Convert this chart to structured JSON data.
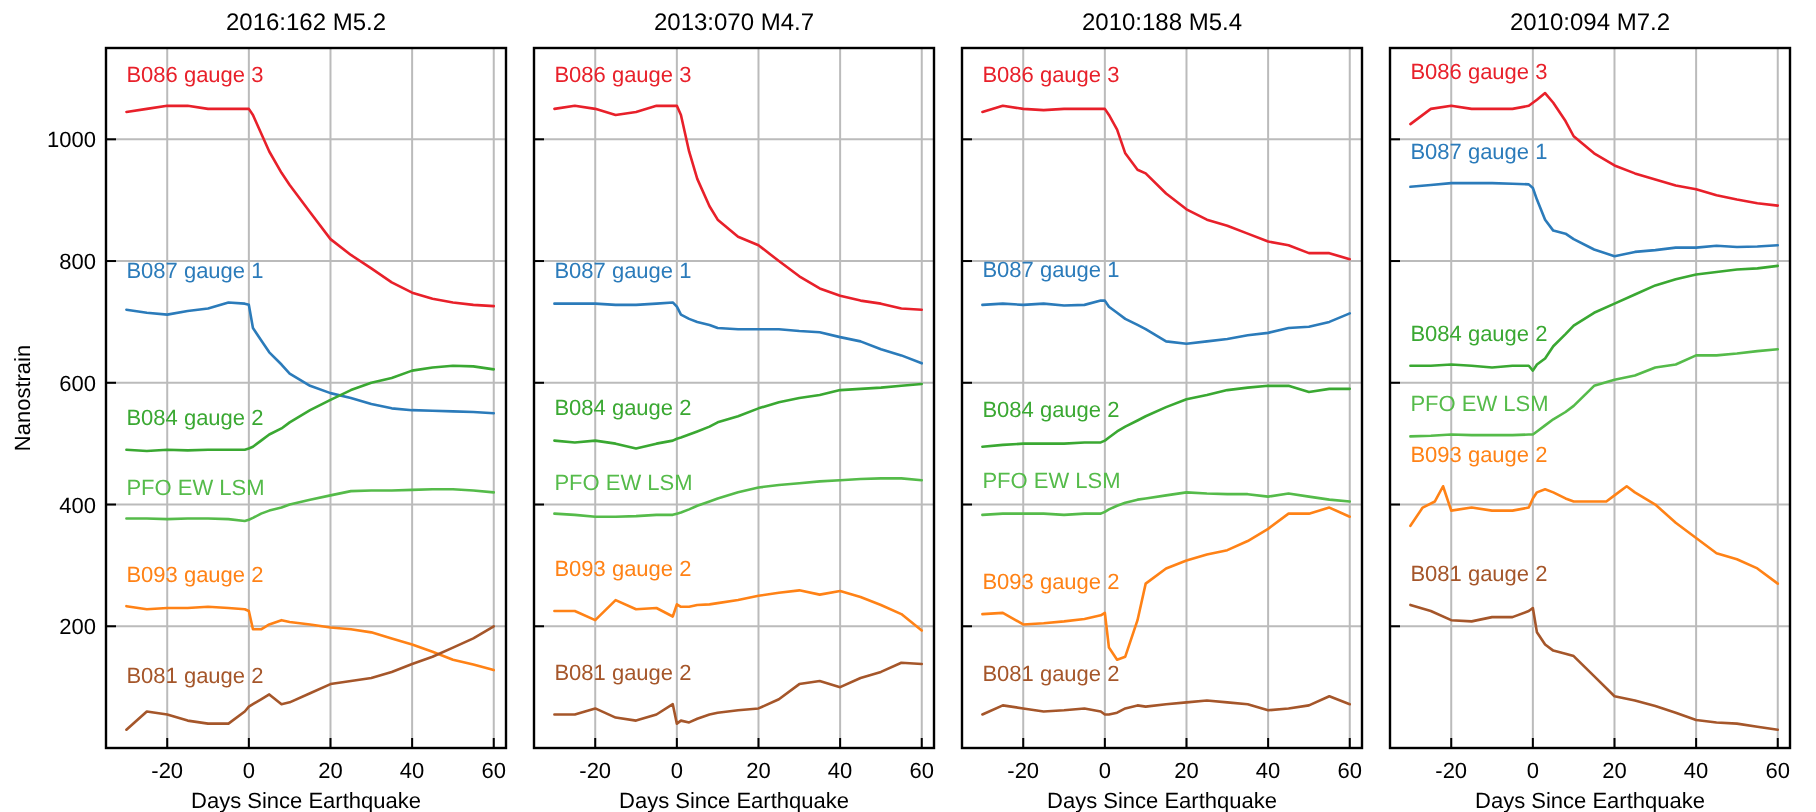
{
  "chart_data": [
    {
      "type": "line",
      "title": "2016:162  M5.2",
      "xlabel": "Days  Since  Earthquake",
      "ylabel": "Nanostrain",
      "xlim": [
        -35,
        63
      ],
      "ylim": [
        0,
        1150
      ],
      "xticks": [
        -20,
        0,
        20,
        40,
        60
      ],
      "yticks": [
        200,
        400,
        600,
        800,
        1000
      ],
      "grid": true,
      "x": [
        -30,
        -25,
        -20,
        -15,
        -10,
        -5,
        -1,
        0,
        1,
        3,
        5,
        8,
        10,
        15,
        20,
        25,
        30,
        35,
        40,
        45,
        50,
        55,
        60
      ],
      "series": [
        {
          "name": "B086  gauge  3",
          "color": "#e8202a",
          "values": [
            1045,
            1050,
            1055,
            1055,
            1050,
            1050,
            1050,
            1050,
            1040,
            1010,
            980,
            945,
            925,
            880,
            836,
            810,
            788,
            765,
            748,
            738,
            732,
            728,
            726
          ]
        },
        {
          "name": "B087  gauge  1",
          "color": "#2b7bba",
          "values": [
            720,
            715,
            712,
            718,
            722,
            732,
            730,
            728,
            690,
            670,
            650,
            630,
            615,
            595,
            583,
            575,
            565,
            558,
            555,
            554,
            553,
            552,
            550
          ]
        },
        {
          "name": "B084  gauge  2",
          "color": "#3aa832",
          "values": [
            490,
            488,
            490,
            489,
            490,
            490,
            490,
            492,
            495,
            505,
            515,
            525,
            535,
            555,
            572,
            588,
            600,
            608,
            620,
            625,
            628,
            627,
            622
          ]
        },
        {
          "name": "PFO  EW  LSM",
          "color": "#55bb4a",
          "values": [
            377,
            377,
            376,
            377,
            377,
            376,
            373,
            375,
            378,
            385,
            390,
            395,
            400,
            408,
            415,
            422,
            423,
            423,
            424,
            425,
            425,
            423,
            420
          ]
        },
        {
          "name": "B093  gauge  2",
          "color": "#ff8216",
          "values": [
            233,
            228,
            230,
            230,
            232,
            230,
            228,
            225,
            195,
            195,
            203,
            210,
            207,
            203,
            198,
            195,
            190,
            180,
            170,
            158,
            145,
            137,
            128
          ]
        },
        {
          "name": "B081  gauge  2",
          "color": "#a5562a",
          "values": [
            30,
            60,
            55,
            45,
            40,
            40,
            60,
            68,
            72,
            80,
            88,
            72,
            75,
            90,
            105,
            110,
            115,
            125,
            138,
            150,
            165,
            180,
            200
          ]
        }
      ]
    },
    {
      "type": "line",
      "title": "2013:070  M4.7",
      "xlabel": "Days  Since  Earthquake",
      "xlim": [
        -35,
        63
      ],
      "ylim": [
        0,
        1150
      ],
      "xticks": [
        -20,
        0,
        20,
        40,
        60
      ],
      "yticks": [
        200,
        400,
        600,
        800,
        1000
      ],
      "grid": true,
      "tick_labels": "x",
      "x": [
        -30,
        -25,
        -20,
        -15,
        -10,
        -5,
        -1,
        0,
        1,
        3,
        5,
        8,
        10,
        15,
        20,
        25,
        30,
        35,
        40,
        45,
        50,
        55,
        60
      ],
      "series": [
        {
          "name": "B086  gauge  3",
          "color": "#e8202a",
          "values": [
            1050,
            1055,
            1050,
            1040,
            1045,
            1055,
            1055,
            1055,
            1040,
            980,
            935,
            890,
            868,
            840,
            826,
            800,
            775,
            755,
            743,
            735,
            730,
            722,
            720
          ]
        },
        {
          "name": "B087  gauge  1",
          "color": "#2b7bba",
          "values": [
            730,
            730,
            730,
            728,
            728,
            730,
            732,
            725,
            712,
            705,
            700,
            695,
            690,
            688,
            688,
            688,
            685,
            683,
            675,
            668,
            655,
            645,
            632
          ]
        },
        {
          "name": "B084  gauge  2",
          "color": "#3aa832",
          "values": [
            505,
            502,
            505,
            500,
            492,
            500,
            505,
            508,
            510,
            515,
            520,
            528,
            535,
            545,
            558,
            568,
            575,
            580,
            588,
            590,
            592,
            595,
            598
          ]
        },
        {
          "name": "PFO  EW  LSM",
          "color": "#55bb4a",
          "values": [
            385,
            383,
            380,
            380,
            381,
            383,
            383,
            385,
            387,
            392,
            398,
            405,
            410,
            420,
            428,
            432,
            435,
            438,
            440,
            442,
            443,
            443,
            440
          ]
        },
        {
          "name": "B093  gauge  2",
          "color": "#ff8216",
          "values": [
            225,
            225,
            210,
            243,
            228,
            230,
            216,
            236,
            232,
            232,
            235,
            236,
            238,
            243,
            250,
            255,
            259,
            252,
            258,
            248,
            235,
            220,
            193
          ]
        },
        {
          "name": "B081  gauge  2",
          "color": "#a5562a",
          "values": [
            55,
            55,
            65,
            50,
            45,
            55,
            72,
            40,
            45,
            42,
            48,
            55,
            58,
            62,
            65,
            80,
            105,
            110,
            100,
            115,
            125,
            140,
            138
          ]
        }
      ]
    },
    {
      "type": "line",
      "title": "2010:188  M5.4",
      "xlabel": "Days  Since  Earthquake",
      "xlim": [
        -35,
        63
      ],
      "ylim": [
        0,
        1150
      ],
      "xticks": [
        -20,
        0,
        20,
        40,
        60
      ],
      "yticks": [
        200,
        400,
        600,
        800,
        1000
      ],
      "grid": true,
      "tick_labels": "x",
      "x": [
        -30,
        -25,
        -20,
        -15,
        -10,
        -5,
        -1,
        0,
        1,
        3,
        5,
        8,
        10,
        15,
        20,
        25,
        30,
        35,
        40,
        45,
        50,
        55,
        60
      ],
      "series": [
        {
          "name": "B086  gauge  3",
          "color": "#e8202a",
          "values": [
            1045,
            1055,
            1050,
            1048,
            1050,
            1050,
            1050,
            1050,
            1040,
            1016,
            977,
            950,
            944,
            911,
            885,
            868,
            858,
            845,
            832,
            826,
            813,
            813,
            803
          ]
        },
        {
          "name": "B087  gauge  1",
          "color": "#2b7bba",
          "values": [
            728,
            730,
            728,
            730,
            727,
            728,
            735,
            735,
            725,
            715,
            705,
            695,
            688,
            668,
            664,
            668,
            672,
            678,
            682,
            690,
            692,
            700,
            714
          ]
        },
        {
          "name": "B084  gauge  2",
          "color": "#3aa832",
          "values": [
            495,
            498,
            500,
            500,
            500,
            502,
            502,
            505,
            510,
            520,
            528,
            538,
            545,
            560,
            573,
            580,
            588,
            592,
            595,
            595,
            585,
            590,
            590
          ]
        },
        {
          "name": "PFO  EW  LSM",
          "color": "#55bb4a",
          "values": [
            383,
            385,
            385,
            385,
            383,
            385,
            385,
            388,
            392,
            398,
            403,
            408,
            410,
            415,
            420,
            418,
            417,
            417,
            413,
            418,
            413,
            408,
            405
          ]
        },
        {
          "name": "B093  gauge  2",
          "color": "#ff8216",
          "values": [
            220,
            222,
            203,
            205,
            208,
            212,
            218,
            222,
            165,
            145,
            150,
            210,
            270,
            295,
            308,
            318,
            325,
            340,
            360,
            385,
            385,
            395,
            380
          ]
        },
        {
          "name": "B081  gauge  2",
          "color": "#a5562a",
          "values": [
            55,
            70,
            65,
            60,
            62,
            65,
            60,
            55,
            55,
            58,
            65,
            70,
            68,
            72,
            75,
            78,
            75,
            72,
            62,
            65,
            70,
            85,
            72
          ]
        }
      ]
    },
    {
      "type": "line",
      "title": "2010:094  M7.2",
      "xlabel": "Days  Since  Earthquake",
      "xlim": [
        -35,
        63
      ],
      "ylim": [
        0,
        1150
      ],
      "xticks": [
        -20,
        0,
        20,
        40,
        60
      ],
      "yticks": [
        200,
        400,
        600,
        800,
        1000
      ],
      "grid": true,
      "tick_labels": "x",
      "x": [
        -30,
        -25,
        -20,
        -15,
        -10,
        -5,
        -1,
        0,
        1,
        3,
        5,
        8,
        10,
        15,
        20,
        25,
        30,
        35,
        40,
        45,
        50,
        55,
        60
      ],
      "series": [
        {
          "name": "B086  gauge  3",
          "color": "#e8202a",
          "values": [
            1025,
            1050,
            1055,
            1050,
            1050,
            1050,
            1055,
            1060,
            1065,
            1076,
            1060,
            1030,
            1005,
            977,
            957,
            944,
            934,
            924,
            918,
            908,
            901,
            895,
            891
          ]
        },
        {
          "name": "B087  gauge  1",
          "color": "#2b7bba",
          "values": [
            922,
            925,
            928,
            928,
            928,
            927,
            926,
            920,
            901,
            868,
            850,
            845,
            836,
            819,
            808,
            815,
            818,
            822,
            822,
            825,
            823,
            824,
            826
          ]
        },
        {
          "name": "B084  gauge  2",
          "color": "#3aa832",
          "values": [
            628,
            628,
            630,
            628,
            625,
            628,
            628,
            620,
            630,
            640,
            660,
            680,
            694,
            715,
            730,
            745,
            760,
            770,
            778,
            782,
            786,
            788,
            792
          ]
        },
        {
          "name": "PFO  EW  LSM",
          "color": "#55bb4a",
          "values": [
            512,
            513,
            515,
            514,
            514,
            514,
            515,
            515,
            520,
            530,
            540,
            552,
            562,
            595,
            605,
            612,
            625,
            630,
            645,
            645,
            648,
            652,
            655
          ]
        },
        {
          "name": "B093  gauge  2",
          "color": "#ff8216",
          "x": [
            -30,
            -27,
            -24,
            -22,
            -20,
            -15,
            -10,
            -5,
            -1,
            0,
            1,
            3,
            5,
            8,
            10,
            15,
            18,
            20,
            23,
            25,
            30,
            35,
            40,
            45,
            50,
            55,
            60
          ],
          "values": [
            365,
            395,
            405,
            430,
            390,
            395,
            390,
            390,
            395,
            410,
            420,
            425,
            420,
            410,
            405,
            405,
            405,
            415,
            430,
            420,
            400,
            370,
            345,
            320,
            310,
            295,
            270
          ]
        },
        {
          "name": "B081  gauge  2",
          "color": "#a5562a",
          "values": [
            235,
            225,
            210,
            208,
            215,
            215,
            225,
            230,
            190,
            170,
            160,
            155,
            151,
            118,
            85,
            78,
            69,
            58,
            46,
            42,
            40,
            35,
            30
          ]
        }
      ]
    }
  ]
}
